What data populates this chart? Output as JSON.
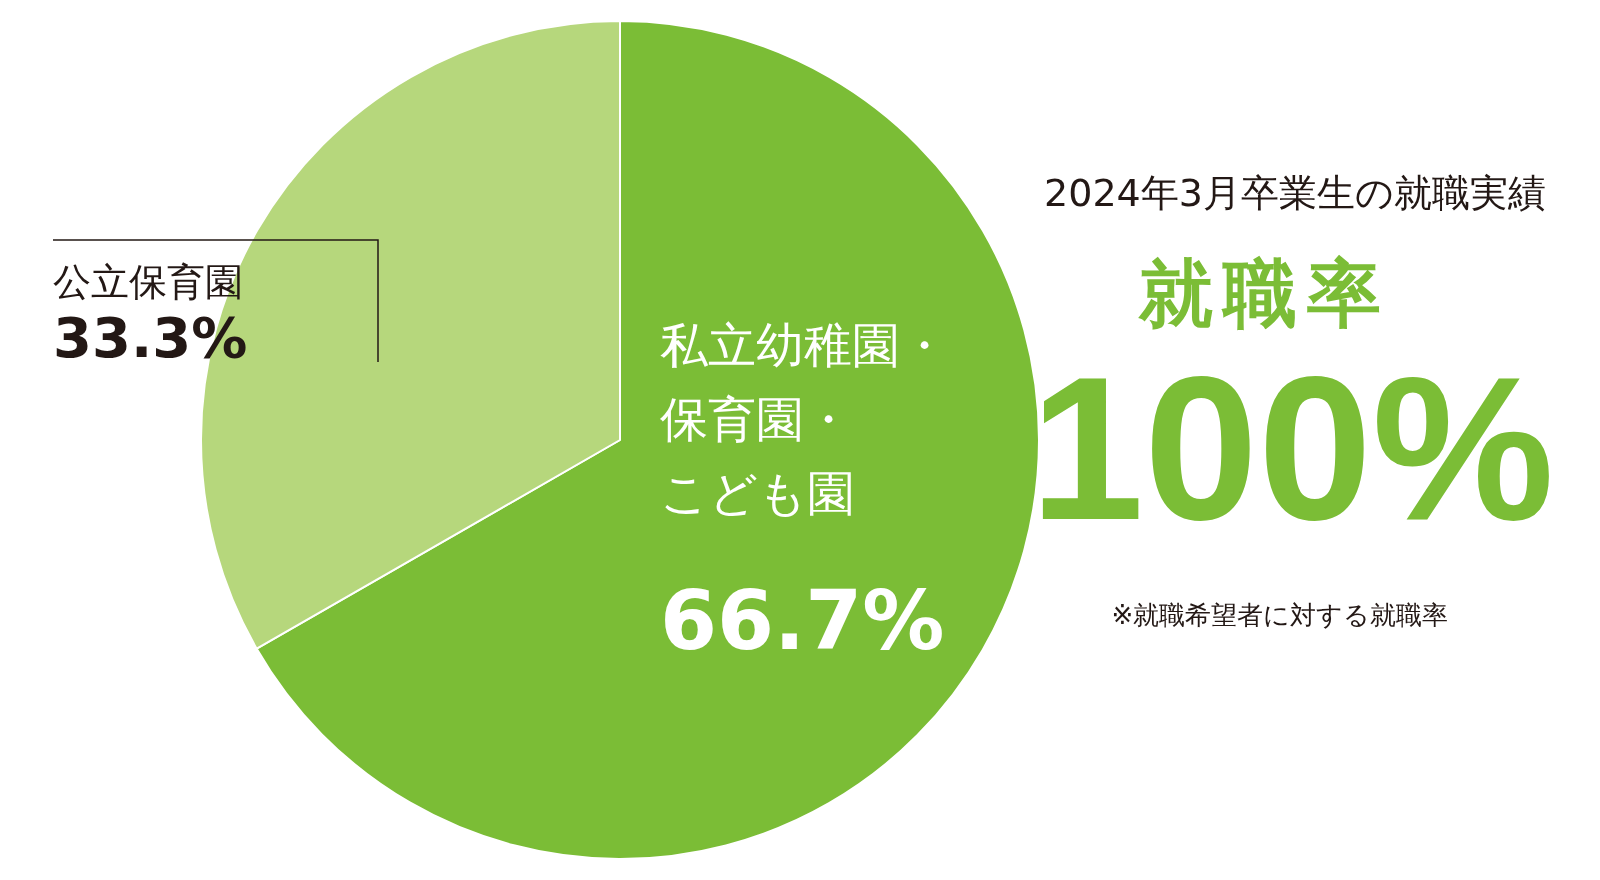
{
  "chart_data": {
    "type": "pie",
    "title": "2024年3月卒業生の就職実績",
    "categories": [
      "私立幼稚園・保育園・こども園",
      "公立保育園"
    ],
    "values": [
      66.7,
      33.3
    ],
    "value_labels": [
      "66.7%",
      "33.3%"
    ],
    "colors": [
      "#7bbd36",
      "#b6d77c"
    ],
    "legend": false,
    "annotations": [
      "就職率",
      "100%",
      "※就職希望者に対する就職率"
    ]
  }
}
